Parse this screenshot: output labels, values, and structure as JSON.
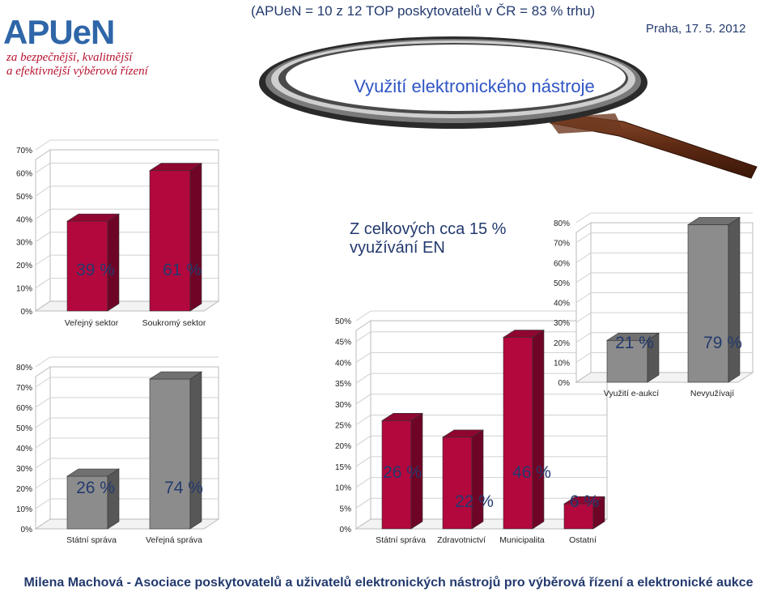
{
  "header": {
    "top_note": "(APUeN = 10 z 12 TOP poskytovatelů v ČR = 83 % trhu)",
    "place_date": "Praha, 17. 5. 2012",
    "logo_text": "APUeN",
    "tagline_1": "za bezpečnější, kvalitnější",
    "tagline_2": "a efektivnější výběrová řízení"
  },
  "banner": {
    "title": "Využití elektronického nástroje",
    "icon": "magnifying-glass-icon"
  },
  "center_note": "Z celkových cca 15 % využívání EN",
  "footer": "Milena Machová - Asociace poskytovatelů a uživatelů elektronických nástrojů pro výběrová řízení a elektronické aukce",
  "colors": {
    "red": "#b3083d",
    "gray": "#8c8c8c",
    "text": "#233a6e",
    "title_blue": "#2f55c4"
  },
  "chart_data": [
    {
      "type": "bar",
      "color": "#b3083d",
      "categories": [
        "Veřejný sektor",
        "Soukromý sektor"
      ],
      "values": [
        39,
        61
      ],
      "value_labels": [
        "39 %",
        "61 %"
      ],
      "yticks": [
        "0%",
        "10%",
        "20%",
        "30%",
        "40%",
        "50%",
        "60%",
        "70%"
      ],
      "ylim": [
        0,
        70
      ]
    },
    {
      "type": "bar",
      "color": "#8c8c8c",
      "categories": [
        "Státní správa",
        "Veřejná správa"
      ],
      "values": [
        26,
        74
      ],
      "value_labels": [
        "26 %",
        "74 %"
      ],
      "yticks": [
        "0%",
        "10%",
        "20%",
        "30%",
        "40%",
        "50%",
        "60%",
        "70%",
        "80%"
      ],
      "ylim": [
        0,
        80
      ]
    },
    {
      "type": "bar",
      "color": "#b3083d",
      "categories": [
        "Státní správa",
        "Zdravotnictví",
        "Municipalita",
        "Ostatní"
      ],
      "values": [
        26,
        22,
        46,
        6
      ],
      "value_labels": [
        "26 %",
        "22 %",
        "46 %",
        "6 %"
      ],
      "yticks": [
        "0%",
        "5%",
        "10%",
        "15%",
        "20%",
        "25%",
        "30%",
        "35%",
        "40%",
        "45%",
        "50%"
      ],
      "ylim": [
        0,
        50
      ]
    },
    {
      "type": "bar",
      "color": "#8c8c8c",
      "categories": [
        "Využití e-aukcí",
        "Nevyužívají"
      ],
      "values": [
        21,
        79
      ],
      "value_labels": [
        "21 %",
        "79 %"
      ],
      "yticks": [
        "0%",
        "10%",
        "20%",
        "30%",
        "40%",
        "50%",
        "60%",
        "70%",
        "80%"
      ],
      "ylim": [
        0,
        80
      ]
    }
  ]
}
